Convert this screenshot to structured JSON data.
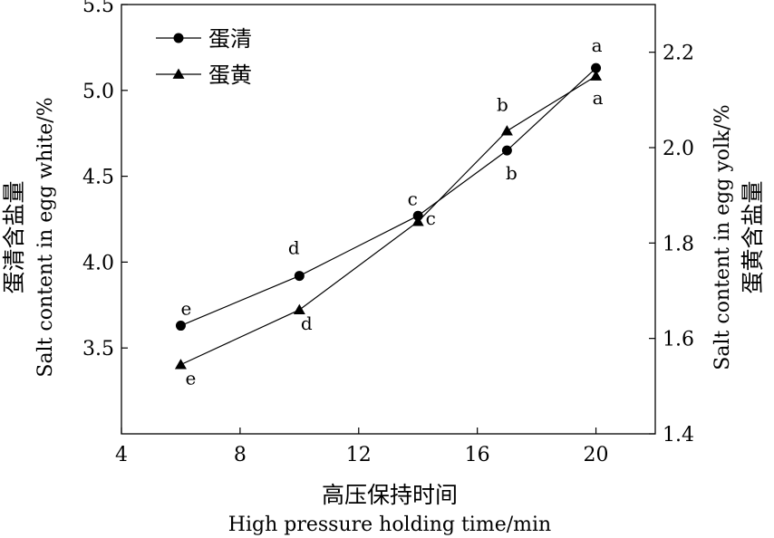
{
  "chart_data": {
    "type": "line",
    "x": [
      6,
      10,
      14,
      17,
      20
    ],
    "xlabel_cn": "高压保持时间",
    "xlabel_en": "High pressure holding time/min",
    "xlim": [
      4,
      22
    ],
    "xticks": [
      4,
      8,
      12,
      16,
      20
    ],
    "ylabel_left_cn": "蛋清含盐量",
    "ylabel_left_en": "Salt content in egg white/%",
    "ylim_left": [
      3.0,
      5.5
    ],
    "yticks_left": [
      3.5,
      4.0,
      4.5,
      5.0,
      5.5
    ],
    "ylabel_right_cn": "蛋黄含盐量",
    "ylabel_right_en": "Salt content in egg yolk/%",
    "ylim_right": [
      1.4,
      2.3
    ],
    "yticks_right": [
      1.4,
      1.6,
      1.8,
      2.0,
      2.2
    ],
    "grid": false,
    "legend_position": "top-left",
    "series": [
      {
        "name": "蛋清",
        "marker": "circle",
        "axis": "left",
        "values": [
          3.63,
          3.92,
          4.27,
          4.65,
          5.13
        ],
        "labels": [
          "e",
          "d",
          "c",
          "b",
          "a"
        ]
      },
      {
        "name": "蛋黄",
        "marker": "triangle",
        "axis": "right",
        "values": [
          1.545,
          1.66,
          1.845,
          2.035,
          2.15
        ],
        "labels": [
          "e",
          "d",
          "c",
          "b",
          "a"
        ]
      }
    ]
  }
}
